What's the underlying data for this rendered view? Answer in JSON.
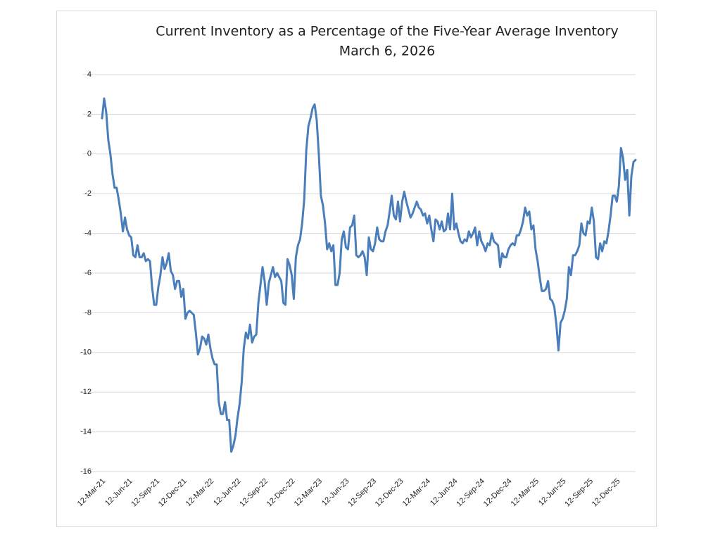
{
  "chart_data": {
    "type": "line",
    "title": "Current Inventory as a Percentage of the Five-Year Average Inventory",
    "subtitle": "March 6, 2026",
    "categories": [
      "12-Mar-21",
      null,
      null,
      null,
      null,
      null,
      null,
      null,
      null,
      null,
      null,
      null,
      null,
      "12-Jun-21",
      null,
      null,
      null,
      null,
      null,
      null,
      null,
      null,
      null,
      null,
      null,
      null,
      "12-Sep-21",
      null,
      null,
      null,
      null,
      null,
      null,
      null,
      null,
      null,
      null,
      null,
      null,
      "12-Dec-21",
      null,
      null,
      null,
      null,
      null,
      null,
      null,
      null,
      null,
      null,
      null,
      null,
      "12-Mar-22",
      null,
      null,
      null,
      null,
      null,
      null,
      null,
      null,
      null,
      null,
      null,
      null,
      "12-Jun-22",
      null,
      null,
      null,
      null,
      null,
      null,
      null,
      null,
      null,
      null,
      null,
      null,
      "12-Sep-22",
      null,
      null,
      null,
      null,
      null,
      null,
      null,
      null,
      null,
      null,
      null,
      null,
      "12-Dec-22",
      null,
      null,
      null,
      null,
      null,
      null,
      null,
      null,
      null,
      null,
      null,
      null,
      "12-Mar-23",
      null,
      null,
      null,
      null,
      null,
      null,
      null,
      null,
      null,
      null,
      null,
      null,
      "12-Jun-23",
      null,
      null,
      null,
      null,
      null,
      null,
      null,
      null,
      null,
      null,
      null,
      null,
      "12-Sep-23",
      null,
      null,
      null,
      null,
      null,
      null,
      null,
      null,
      null,
      null,
      null,
      null,
      "12-Dec-23",
      null,
      null,
      null,
      null,
      null,
      null,
      null,
      null,
      null,
      null,
      null,
      null,
      "12-Mar-24",
      null,
      null,
      null,
      null,
      null,
      null,
      null,
      null,
      null,
      null,
      null,
      null,
      "12-Jun-24",
      null,
      null,
      null,
      null,
      null,
      null,
      null,
      null,
      null,
      null,
      null,
      null,
      "12-Sep-24",
      null,
      null,
      null,
      null,
      null,
      null,
      null,
      null,
      null,
      null,
      null,
      null,
      "12-Dec-24",
      null,
      null,
      null,
      null,
      null,
      null,
      null,
      null,
      null,
      null,
      null,
      null,
      "12-Mar-25",
      null,
      null,
      null,
      null,
      null,
      null,
      null,
      null,
      null,
      null,
      null,
      null,
      "12-Jun-25",
      null,
      null,
      null,
      null,
      null,
      null,
      null,
      null,
      null,
      null,
      null,
      null,
      "12-Sep-25",
      null,
      null,
      null,
      null,
      null,
      null,
      null,
      null,
      null,
      null,
      null,
      null,
      "12-Dec-25",
      null,
      null,
      null,
      null,
      null,
      null,
      null,
      null,
      null
    ],
    "values": [
      1.8,
      2.8,
      2.1,
      0.7,
      0,
      -1,
      -1.7,
      -1.7,
      -2.3,
      -3,
      -3.9,
      -3.2,
      -3.8,
      -4.1,
      -4.2,
      -5.1,
      -5.2,
      -4.6,
      -5.2,
      -5.2,
      -5,
      -5.4,
      -5.3,
      -5.4,
      -6.7,
      -7.6,
      -7.6,
      -6.7,
      -6.1,
      -5.2,
      -5.8,
      -5.5,
      -5,
      -5.9,
      -6.1,
      -6.8,
      -6.4,
      -6.4,
      -7.2,
      -6.8,
      -8.3,
      -8,
      -7.9,
      -8,
      -8.1,
      -9,
      -10.1,
      -9.8,
      -9.2,
      -9.3,
      -9.6,
      -9.1,
      -9.8,
      -10.3,
      -10.6,
      -10.6,
      -12.5,
      -13.1,
      -13.1,
      -12.5,
      -13.4,
      -13.4,
      -15,
      -14.7,
      -14.2,
      -13.3,
      -12.6,
      -11.5,
      -9.8,
      -9,
      -9.3,
      -8.6,
      -9.5,
      -9.2,
      -9.1,
      -7.5,
      -6.6,
      -5.7,
      -6.4,
      -7.6,
      -6.5,
      -6.1,
      -5.7,
      -6.2,
      -6,
      -6.2,
      -6.4,
      -7.5,
      -7.6,
      -5.3,
      -5.6,
      -6.1,
      -7.3,
      -5.2,
      -4.6,
      -4.3,
      -3.5,
      -2.3,
      0.2,
      1.4,
      1.8,
      2.3,
      2.5,
      1.7,
      0,
      -2.1,
      -2.6,
      -3.5,
      -4.8,
      -4.5,
      -4.9,
      -4.6,
      -6.6,
      -6.6,
      -6,
      -4.3,
      -3.9,
      -4.7,
      -4.8,
      -3.7,
      -3.6,
      -3.1,
      -5.1,
      -5.2,
      -5.1,
      -4.9,
      -5.2,
      -6.1,
      -4.2,
      -4.8,
      -4.9,
      -4.5,
      -3.7,
      -4.3,
      -4.4,
      -4.4,
      -3.9,
      -3.6,
      -2.9,
      -2.1,
      -3.1,
      -3.3,
      -2.4,
      -3.4,
      -2.4,
      -1.9,
      -2.4,
      -2.8,
      -3.2,
      -3,
      -2.7,
      -2.4,
      -2.7,
      -2.8,
      -3.1,
      -3,
      -3.5,
      -3.1,
      -3.8,
      -4.4,
      -3.3,
      -3.4,
      -3.8,
      -3.4,
      -3.9,
      -3.8,
      -3,
      -3.8,
      -2,
      -3.8,
      -3.5,
      -4,
      -4.4,
      -4.5,
      -4.3,
      -4.4,
      -3.9,
      -4.2,
      -4,
      -3.7,
      -4.6,
      -3.9,
      -4.4,
      -4.6,
      -4.9,
      -4.5,
      -4.6,
      -4,
      -4.4,
      -4.5,
      -4.6,
      -5.7,
      -5,
      -5.2,
      -5.2,
      -4.8,
      -4.6,
      -4.5,
      -4.6,
      -4.1,
      -4.1,
      -3.8,
      -3.4,
      -2.7,
      -3.1,
      -2.9,
      -3.8,
      -3.6,
      -4.8,
      -5.4,
      -6.2,
      -6.9,
      -6.9,
      -6.8,
      -6.4,
      -7.3,
      -7.4,
      -7.7,
      -8.6,
      -9.9,
      -8.5,
      -8.3,
      -7.9,
      -7.3,
      -5.7,
      -6.1,
      -5.1,
      -5.1,
      -4.9,
      -4.6,
      -3.5,
      -4,
      -4.1,
      -3.4,
      -3.5,
      -2.7,
      -3.4,
      -5.2,
      -5.3,
      -4.5,
      -4.9,
      -4.4,
      -4.5,
      -3.9,
      -3.1,
      -2.1,
      -2.1,
      -2.4,
      -1.6,
      0.3,
      -0.2,
      -1.3,
      -0.8,
      -3.1,
      -1.1,
      -0.4,
      -0.3
    ],
    "color": "#4a7ebb",
    "ylim": [
      -16,
      4
    ],
    "yticks": [
      -16,
      -14,
      -12,
      -10,
      -8,
      -6,
      -4,
      -2,
      0,
      2,
      4
    ],
    "grid": true
  }
}
